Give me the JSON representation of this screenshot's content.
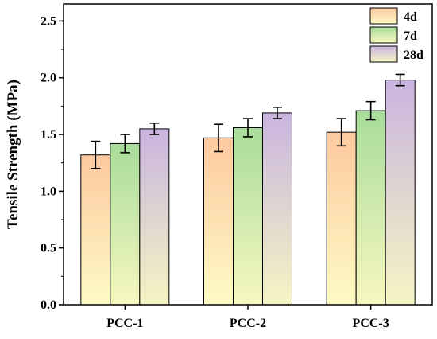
{
  "chart_data": {
    "type": "bar",
    "title": "",
    "xlabel": "",
    "ylabel": "Tensile Strength (MPa)",
    "categories": [
      "PCC-1",
      "PCC-2",
      "PCC-3"
    ],
    "ylim": [
      0,
      2.65
    ],
    "yticks": [
      "0.0",
      "0.5",
      "1.0",
      "1.5",
      "2.0",
      "2.5"
    ],
    "grid": false,
    "legend_position": "top-right",
    "series": [
      {
        "name": "4d",
        "values": [
          1.32,
          1.47,
          1.52
        ],
        "errors": [
          0.12,
          0.12,
          0.12
        ],
        "gradient": [
          "#fdc9a1",
          "#fdfbc3"
        ]
      },
      {
        "name": "7d",
        "values": [
          1.42,
          1.56,
          1.71
        ],
        "errors": [
          0.08,
          0.08,
          0.08
        ],
        "gradient": [
          "#a8dc9a",
          "#f7f8c0"
        ]
      },
      {
        "name": "28d",
        "values": [
          1.55,
          1.69,
          1.98
        ],
        "errors": [
          0.05,
          0.05,
          0.05
        ],
        "gradient": [
          "#c9b4df",
          "#f6f5c3"
        ]
      }
    ]
  }
}
